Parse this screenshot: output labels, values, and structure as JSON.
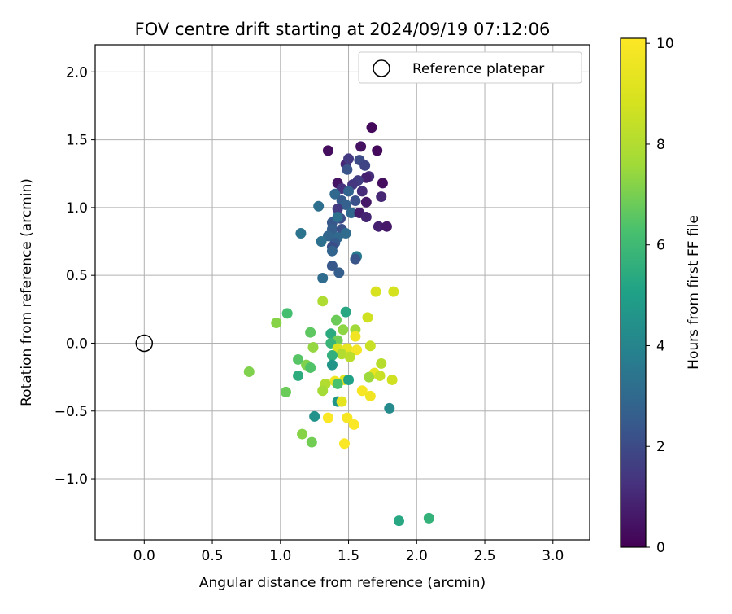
{
  "chart_data": {
    "type": "scatter",
    "title": "FOV centre drift starting at 2024/09/19 07:12:06",
    "xlabel": "Angular distance from reference (arcmin)",
    "ylabel": "Rotation from reference (arcmin)",
    "xlim": [
      -0.36,
      3.27
    ],
    "ylim": [
      -1.45,
      2.2
    ],
    "xticks": [
      "0.0",
      "0.5",
      "1.0",
      "1.5",
      "2.0",
      "2.5",
      "3.0"
    ],
    "yticks": [
      "−1.0",
      "−0.5",
      "0.0",
      "0.5",
      "1.0",
      "1.5",
      "2.0"
    ],
    "grid": true,
    "legend": {
      "placement": "top-right",
      "entries": [
        "Reference platepar"
      ]
    },
    "reference": {
      "x": 0.0,
      "y": 0.0,
      "marker": "open-circle",
      "label": "Reference platepar"
    },
    "colorbar": {
      "label": "Hours from first FF file",
      "min": 0,
      "max": 10.1,
      "ticks": [
        "0",
        "2",
        "4",
        "6",
        "8",
        "10"
      ],
      "colormap": "viridis"
    },
    "points": [
      {
        "x": 1.67,
        "y": 1.59,
        "h": 0.2
      },
      {
        "x": 1.35,
        "y": 1.42,
        "h": 0.3
      },
      {
        "x": 1.59,
        "y": 1.45,
        "h": 0.4
      },
      {
        "x": 1.71,
        "y": 1.42,
        "h": 0.2
      },
      {
        "x": 1.48,
        "y": 1.32,
        "h": 1.0
      },
      {
        "x": 1.5,
        "y": 1.36,
        "h": 1.5
      },
      {
        "x": 1.58,
        "y": 1.35,
        "h": 2.0
      },
      {
        "x": 1.62,
        "y": 1.31,
        "h": 1.8
      },
      {
        "x": 1.49,
        "y": 1.28,
        "h": 2.3
      },
      {
        "x": 1.65,
        "y": 1.23,
        "h": 1.2
      },
      {
        "x": 1.63,
        "y": 1.22,
        "h": 0.8
      },
      {
        "x": 1.57,
        "y": 1.2,
        "h": 1.6
      },
      {
        "x": 1.75,
        "y": 1.18,
        "h": 0.3
      },
      {
        "x": 1.42,
        "y": 1.18,
        "h": 0.5
      },
      {
        "x": 1.53,
        "y": 1.17,
        "h": 1.4
      },
      {
        "x": 1.45,
        "y": 1.14,
        "h": 1.3
      },
      {
        "x": 1.6,
        "y": 1.12,
        "h": 1.1
      },
      {
        "x": 1.4,
        "y": 1.1,
        "h": 3.0
      },
      {
        "x": 1.5,
        "y": 1.12,
        "h": 2.8
      },
      {
        "x": 1.74,
        "y": 1.08,
        "h": 1.0
      },
      {
        "x": 1.45,
        "y": 1.05,
        "h": 2.5
      },
      {
        "x": 1.28,
        "y": 1.01,
        "h": 3.2
      },
      {
        "x": 1.63,
        "y": 1.04,
        "h": 0.6
      },
      {
        "x": 1.55,
        "y": 1.05,
        "h": 2.2
      },
      {
        "x": 1.48,
        "y": 1.02,
        "h": 2.7
      },
      {
        "x": 1.42,
        "y": 0.99,
        "h": 1.5
      },
      {
        "x": 1.52,
        "y": 0.96,
        "h": 3.0
      },
      {
        "x": 1.58,
        "y": 0.96,
        "h": 0.7
      },
      {
        "x": 1.63,
        "y": 0.93,
        "h": 0.9
      },
      {
        "x": 1.44,
        "y": 0.92,
        "h": 2.0
      },
      {
        "x": 1.38,
        "y": 0.89,
        "h": 2.4
      },
      {
        "x": 1.42,
        "y": 0.93,
        "h": 3.3
      },
      {
        "x": 1.72,
        "y": 0.86,
        "h": 0.8
      },
      {
        "x": 1.78,
        "y": 0.86,
        "h": 0.6
      },
      {
        "x": 1.15,
        "y": 0.81,
        "h": 3.4
      },
      {
        "x": 1.38,
        "y": 0.84,
        "h": 2.6
      },
      {
        "x": 1.45,
        "y": 0.84,
        "h": 2.2
      },
      {
        "x": 1.48,
        "y": 0.81,
        "h": 3.1
      },
      {
        "x": 1.35,
        "y": 0.79,
        "h": 2.9
      },
      {
        "x": 1.42,
        "y": 0.78,
        "h": 3.0
      },
      {
        "x": 1.3,
        "y": 0.75,
        "h": 3.3
      },
      {
        "x": 1.4,
        "y": 0.74,
        "h": 2.5
      },
      {
        "x": 1.38,
        "y": 0.71,
        "h": 2.1
      },
      {
        "x": 1.38,
        "y": 0.68,
        "h": 2.8
      },
      {
        "x": 1.56,
        "y": 0.64,
        "h": 3.6
      },
      {
        "x": 1.55,
        "y": 0.62,
        "h": 2.3
      },
      {
        "x": 1.38,
        "y": 0.57,
        "h": 2.4
      },
      {
        "x": 1.43,
        "y": 0.52,
        "h": 2.6
      },
      {
        "x": 1.31,
        "y": 0.48,
        "h": 3.1
      },
      {
        "x": 1.7,
        "y": 0.38,
        "h": 8.9
      },
      {
        "x": 1.83,
        "y": 0.38,
        "h": 8.8
      },
      {
        "x": 1.31,
        "y": 0.31,
        "h": 7.9
      },
      {
        "x": 1.48,
        "y": 0.23,
        "h": 5.3
      },
      {
        "x": 1.05,
        "y": 0.22,
        "h": 6.2
      },
      {
        "x": 1.64,
        "y": 0.19,
        "h": 8.7
      },
      {
        "x": 1.41,
        "y": 0.17,
        "h": 6.8
      },
      {
        "x": 0.97,
        "y": 0.15,
        "h": 7.2
      },
      {
        "x": 1.55,
        "y": 0.1,
        "h": 7.6
      },
      {
        "x": 1.46,
        "y": 0.1,
        "h": 7.3
      },
      {
        "x": 1.22,
        "y": 0.08,
        "h": 6.6
      },
      {
        "x": 1.37,
        "y": 0.07,
        "h": 5.4
      },
      {
        "x": 1.55,
        "y": 0.05,
        "h": 9.7
      },
      {
        "x": 1.42,
        "y": 0.02,
        "h": 6.9
      },
      {
        "x": 1.37,
        "y": 0.0,
        "h": 5.8
      },
      {
        "x": 1.66,
        "y": -0.02,
        "h": 8.5
      },
      {
        "x": 1.42,
        "y": -0.04,
        "h": 9.0
      },
      {
        "x": 1.24,
        "y": -0.03,
        "h": 7.4
      },
      {
        "x": 1.49,
        "y": -0.04,
        "h": 9.4
      },
      {
        "x": 1.56,
        "y": -0.05,
        "h": 9.8
      },
      {
        "x": 1.45,
        "y": -0.08,
        "h": 8.0
      },
      {
        "x": 1.51,
        "y": -0.1,
        "h": 8.2
      },
      {
        "x": 1.38,
        "y": -0.09,
        "h": 5.6
      },
      {
        "x": 1.13,
        "y": -0.12,
        "h": 6.5
      },
      {
        "x": 1.74,
        "y": -0.15,
        "h": 8.1
      },
      {
        "x": 1.38,
        "y": -0.16,
        "h": 4.6
      },
      {
        "x": 1.19,
        "y": -0.16,
        "h": 7.1
      },
      {
        "x": 1.22,
        "y": -0.18,
        "h": 6.4
      },
      {
        "x": 0.77,
        "y": -0.21,
        "h": 7.1
      },
      {
        "x": 1.69,
        "y": -0.22,
        "h": 9.4
      },
      {
        "x": 1.13,
        "y": -0.24,
        "h": 5.5
      },
      {
        "x": 1.73,
        "y": -0.24,
        "h": 8.5
      },
      {
        "x": 1.65,
        "y": -0.25,
        "h": 7.5
      },
      {
        "x": 1.82,
        "y": -0.27,
        "h": 8.7
      },
      {
        "x": 1.47,
        "y": -0.27,
        "h": 9.2
      },
      {
        "x": 1.4,
        "y": -0.28,
        "h": 9.6
      },
      {
        "x": 1.5,
        "y": -0.27,
        "h": 5.1
      },
      {
        "x": 1.33,
        "y": -0.3,
        "h": 8.0
      },
      {
        "x": 1.42,
        "y": -0.3,
        "h": 6.3
      },
      {
        "x": 1.31,
        "y": -0.35,
        "h": 7.7
      },
      {
        "x": 1.04,
        "y": -0.36,
        "h": 6.8
      },
      {
        "x": 1.6,
        "y": -0.35,
        "h": 9.9
      },
      {
        "x": 1.66,
        "y": -0.39,
        "h": 9.7
      },
      {
        "x": 1.42,
        "y": -0.43,
        "h": 4.6
      },
      {
        "x": 1.45,
        "y": -0.43,
        "h": 9.3
      },
      {
        "x": 1.8,
        "y": -0.48,
        "h": 4.2
      },
      {
        "x": 1.25,
        "y": -0.54,
        "h": 4.5
      },
      {
        "x": 1.35,
        "y": -0.55,
        "h": 10.0
      },
      {
        "x": 1.49,
        "y": -0.55,
        "h": 9.9
      },
      {
        "x": 1.54,
        "y": -0.6,
        "h": 10.0
      },
      {
        "x": 1.16,
        "y": -0.67,
        "h": 7.2
      },
      {
        "x": 1.23,
        "y": -0.73,
        "h": 6.9
      },
      {
        "x": 1.47,
        "y": -0.74,
        "h": 10.0
      },
      {
        "x": 1.87,
        "y": -1.31,
        "h": 5.3
      },
      {
        "x": 2.09,
        "y": -1.29,
        "h": 5.7
      }
    ]
  }
}
